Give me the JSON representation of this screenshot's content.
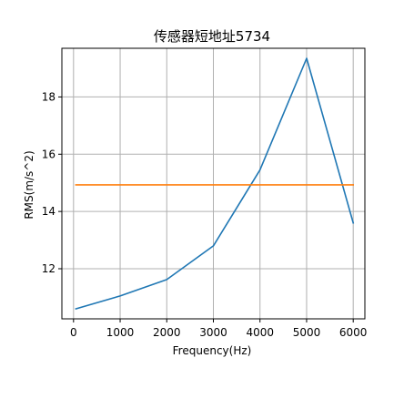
{
  "chart_data": {
    "type": "line",
    "title": "传感器短地址5734",
    "xlabel": "Frequency(Hz)",
    "ylabel": "RMS(m/s^2)",
    "xlim": [
      -250,
      6250
    ],
    "ylim": [
      10.25,
      19.7
    ],
    "xticks": [
      0,
      1000,
      2000,
      3000,
      4000,
      5000,
      6000
    ],
    "yticks": [
      12,
      14,
      16,
      18
    ],
    "grid": true,
    "series": [
      {
        "color": "#1f77b4",
        "x": [
          50,
          1000,
          2000,
          3000,
          4000,
          5000,
          6000
        ],
        "y": [
          10.6,
          11.05,
          11.62,
          12.8,
          15.45,
          19.35,
          13.6
        ]
      },
      {
        "color": "#ff7f0e",
        "x": [
          50,
          6000
        ],
        "y": [
          14.93,
          14.93
        ]
      }
    ]
  }
}
